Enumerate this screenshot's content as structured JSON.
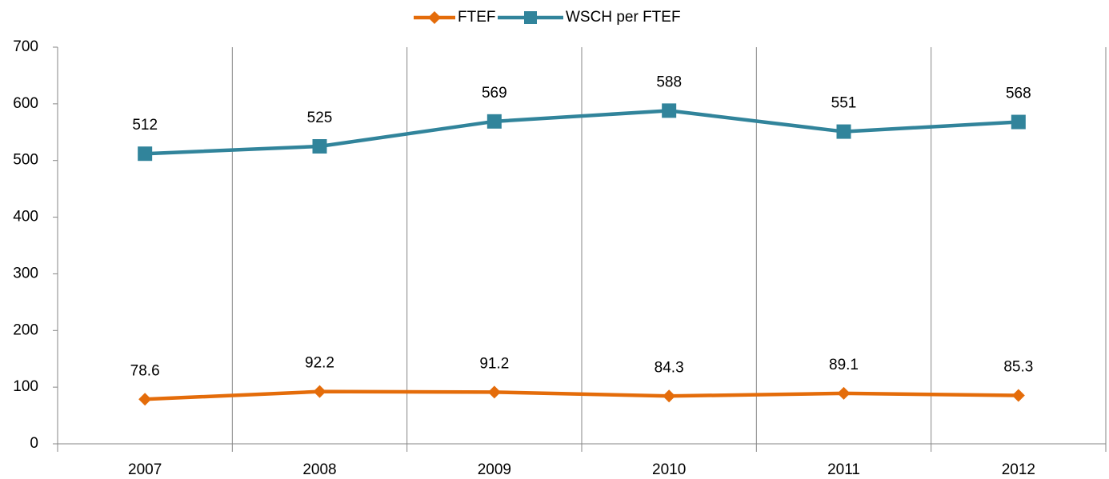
{
  "chart_data": {
    "type": "line",
    "categories": [
      "2007",
      "2008",
      "2009",
      "2010",
      "2011",
      "2012"
    ],
    "series": [
      {
        "name": "FTEF",
        "color": "#e46c0a",
        "marker": "diamond",
        "values": [
          78.6,
          92.2,
          91.2,
          84.3,
          89.1,
          85.3
        ]
      },
      {
        "name": "WSCH per FTEF",
        "color": "#31849b",
        "marker": "square",
        "values": [
          512,
          525,
          569,
          588,
          551,
          568
        ]
      }
    ],
    "ylim": [
      0,
      700
    ],
    "yticks": [
      0,
      100,
      200,
      300,
      400,
      500,
      600,
      700
    ],
    "legend": "top",
    "data_labels": true
  }
}
